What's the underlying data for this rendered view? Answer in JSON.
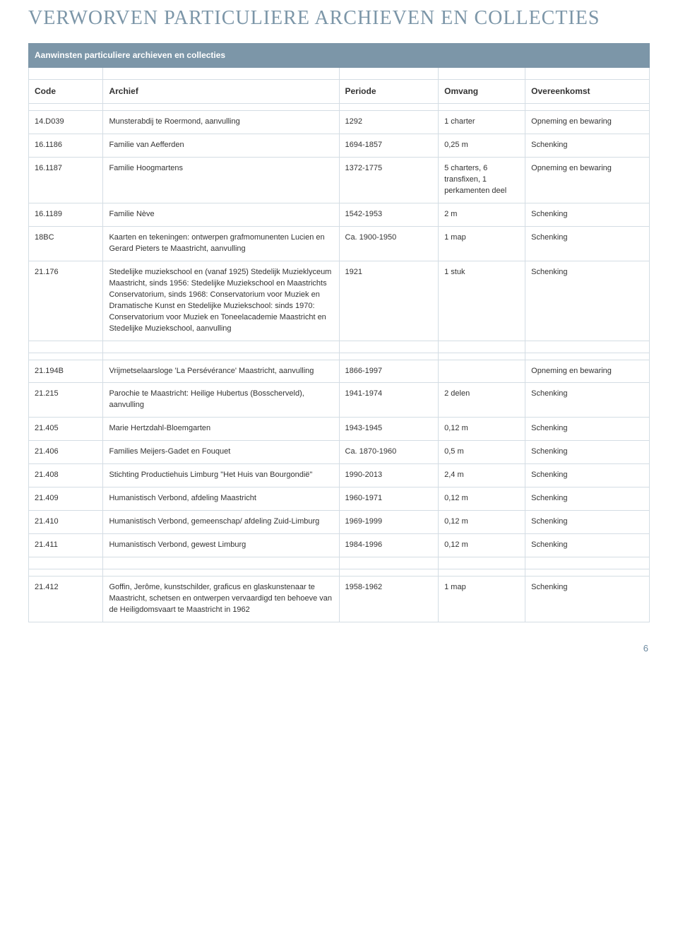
{
  "title": "VERWORVEN PARTICULIERE ARCHIEVEN EN COLLECTIES",
  "intro": "Aanwinsten particuliere archieven en collecties",
  "columns": [
    "Code",
    "Archief",
    "Periode",
    "Omvang",
    "Overeenkomst"
  ],
  "page_number": "6",
  "colors": {
    "heading": "#7c96a8",
    "header_bg": "#7c96a8",
    "border": "#d4dde4",
    "text": "#333333"
  },
  "groups": [
    {
      "rows": [
        [
          "14.D039",
          "Munsterabdij te Roermond, aanvulling",
          "1292",
          "1 charter",
          "Opneming en bewaring"
        ],
        [
          "16.1186",
          "Familie van Aefferden",
          "1694-1857",
          "0,25 m",
          "Schenking"
        ],
        [
          "16.1187",
          "Familie Hoogmartens",
          "1372-1775",
          "5 charters, 6 transfixen, 1 perkamenten deel",
          "Opneming en bewaring"
        ],
        [
          "16.1189",
          "Familie Nève",
          "1542-1953",
          "2 m",
          "Schenking"
        ],
        [
          "18BC",
          "Kaarten en tekeningen: ontwerpen grafmomunenten Lucien en Gerard Pieters te Maastricht, aanvulling",
          "Ca. 1900-1950",
          "1 map",
          "Schenking"
        ],
        [
          "21.176",
          "Stedelijke muziekschool en (vanaf 1925) Stedelijk Muzieklyceum Maastricht, sinds 1956: Stedelijke Muziekschool en Maastrichts Conservatorium, sinds 1968: Conservatorium voor Muziek en Dramatische Kunst en Stedelijke Muziekschool: sinds 1970: Conservatorium voor Muziek en Toneelacademie Maastricht en Stedelijke Muziekschool, aanvulling",
          "1921",
          "1 stuk",
          "Schenking"
        ]
      ]
    },
    {
      "rows": [
        [
          "21.194B",
          "Vrijmetselaarsloge 'La Persévérance' Maastricht, aanvulling",
          "1866-1997",
          "",
          "Opneming en bewaring"
        ],
        [
          "21.215",
          "Parochie te Maastricht: Heilige Hubertus (Bosscherveld), aanvulling",
          "1941-1974",
          "2 delen",
          "Schenking"
        ],
        [
          "21.405",
          "Marie Hertzdahl-Bloemgarten",
          "1943-1945",
          "0,12 m",
          "Schenking"
        ],
        [
          "21.406",
          "Families Meijers-Gadet en Fouquet",
          "Ca. 1870-1960",
          "0,5 m",
          "Schenking"
        ],
        [
          "21.408",
          "Stichting Productiehuis Limburg \"Het Huis van Bourgondië\"",
          "1990-2013",
          "2,4  m",
          "Schenking"
        ],
        [
          "21.409",
          "Humanistisch Verbond, afdeling Maastricht",
          "1960-1971",
          "0,12 m",
          "Schenking"
        ],
        [
          "21.410",
          "Humanistisch Verbond, gemeenschap/ afdeling Zuid-Limburg",
          "1969-1999",
          "0,12 m",
          "Schenking"
        ],
        [
          "21.411",
          "Humanistisch Verbond, gewest Limburg",
          "1984-1996",
          "0,12 m",
          "Schenking"
        ]
      ]
    },
    {
      "rows": [
        [
          "21.412",
          "Goffin, Jerôme, kunstschilder, graficus en glaskunstenaar te Maastricht, schetsen en ontwerpen vervaardigd  ten behoeve van de Heiligdomsvaart te Maastricht in 1962",
          "1958-1962",
          "1 map",
          "Schenking"
        ]
      ]
    }
  ]
}
